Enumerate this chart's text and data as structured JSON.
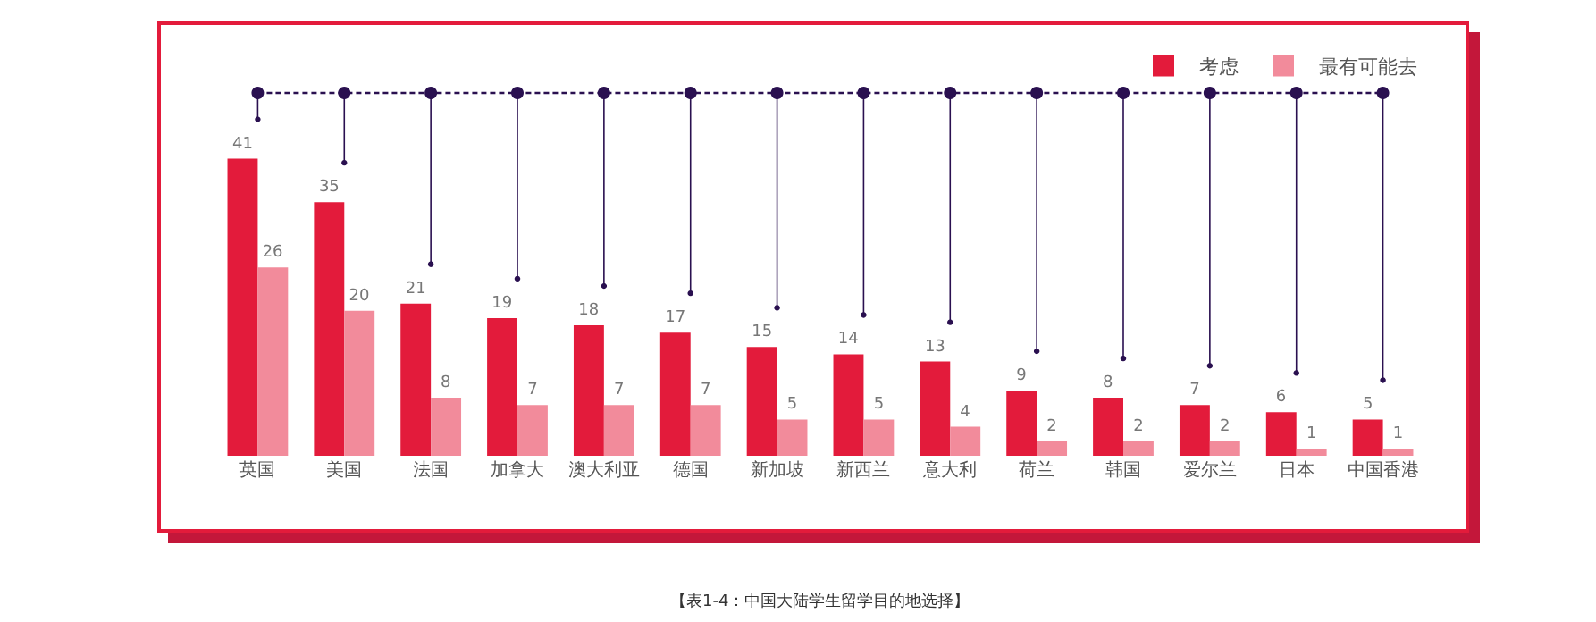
{
  "chart_data": {
    "type": "bar",
    "categories": [
      "英国",
      "美国",
      "法国",
      "加拿大",
      "澳大利亚",
      "德国",
      "新加坡",
      "新西兰",
      "意大利",
      "荷兰",
      "韩国",
      "爱尔兰",
      "日本",
      "中国香港"
    ],
    "series": [
      {
        "name": "考虑",
        "color": "#e31b3b",
        "values": [
          41,
          35,
          21,
          19,
          18,
          17,
          15,
          14,
          13,
          9,
          8,
          7,
          6,
          5
        ]
      },
      {
        "name": "最有可能去",
        "color": "#f28b9b",
        "values": [
          26,
          20,
          8,
          7,
          7,
          7,
          5,
          5,
          4,
          2,
          2,
          2,
          1,
          1
        ]
      }
    ],
    "data_labels": true,
    "legend": "top right",
    "grid": false,
    "annotations": [
      "【表1-4：中国大陆学生留学目的地选择】"
    ]
  }
}
